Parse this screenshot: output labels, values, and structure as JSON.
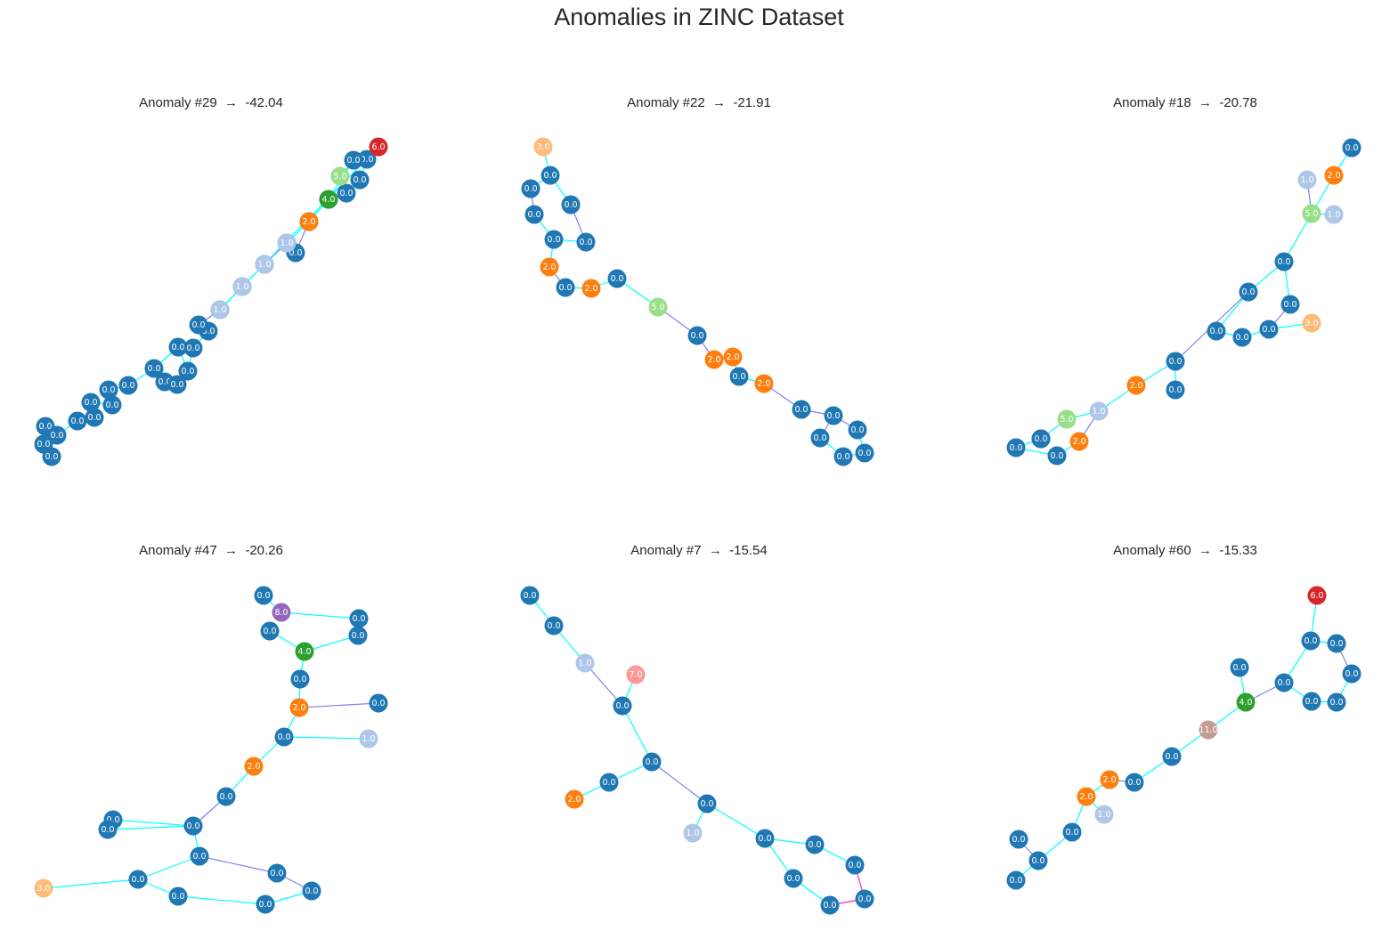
{
  "title": "Anomalies in ZINC Dataset",
  "colors": {
    "bond_single": "#00ffff",
    "bond_double": "#8080ee",
    "bond_other": "#ee22cc",
    "atom": {
      "0": "#1f77b4",
      "1": "#aec7e8",
      "2": "#ff7f0e",
      "3": "#ffbb78",
      "4": "#2ca02c",
      "5": "#98df8a",
      "6": "#d62728",
      "7": "#ff9896",
      "8": "#9467bd",
      "11": "#c49c94"
    }
  },
  "panels": [
    {
      "title": "Anomaly #29  →  -42.04",
      "atoms": [
        "0.0",
        "0.0",
        "0.0",
        "0.0",
        "0.0",
        "0.0",
        "0.0",
        "0.0",
        "0.0",
        "0.0",
        "0.0",
        "0.0",
        "0.0",
        "0.0",
        "0.0",
        "0.0",
        "0.0",
        "0.0",
        "0.0",
        "0.0",
        "0.0",
        "0.0",
        "0.0",
        "0.0",
        "0.0",
        "0.0",
        "0.0",
        "0.0",
        "0.0",
        "5.0",
        "4.0",
        "2.0",
        "1.0",
        "1.0",
        "1.0",
        "1.0",
        "6.0"
      ],
      "edges": [
        [
          0,
          1
        ],
        [
          0,
          2
        ],
        [
          0,
          3
        ],
        [
          3,
          4
        ],
        [
          4,
          5
        ],
        [
          5,
          6
        ],
        [
          6,
          7
        ],
        [
          7,
          8
        ],
        [
          8,
          9
        ],
        [
          9,
          10
        ],
        [
          10,
          11
        ],
        [
          10,
          12
        ],
        [
          11,
          13
        ],
        [
          12,
          14
        ],
        [
          14,
          15
        ],
        [
          15,
          16
        ],
        [
          16,
          17
        ],
        [
          17,
          18
        ],
        [
          18,
          19
        ],
        [
          19,
          20
        ],
        [
          20,
          21
        ],
        [
          21,
          22
        ],
        [
          22,
          23
        ],
        [
          23,
          24
        ],
        [
          24,
          25
        ],
        [
          25,
          26
        ],
        [
          26,
          27
        ],
        [
          27,
          28
        ],
        [
          28,
          29
        ],
        [
          28,
          30
        ],
        [
          30,
          31
        ],
        [
          31,
          32
        ],
        [
          32,
          33
        ],
        [
          33,
          34
        ],
        [
          34,
          35
        ],
        [
          35,
          36
        ]
      ]
    },
    {
      "title": "Anomaly #22  →  -21.91",
      "atoms": [
        "3.0",
        "0.0",
        "0.0",
        "0.0",
        "0.0",
        "0.0",
        "0.0",
        "2.0",
        "0.0",
        "2.0",
        "0.0",
        "5.0",
        "0.0",
        "2.0",
        "2.0",
        "0.0",
        "2.0",
        "0.0",
        "0.0",
        "0.0",
        "0.0",
        "0.0",
        "0.0"
      ],
      "edges": [
        [
          0,
          1
        ],
        [
          1,
          2
        ],
        [
          2,
          3
        ],
        [
          3,
          4
        ],
        [
          4,
          5
        ],
        [
          5,
          6
        ],
        [
          4,
          7
        ],
        [
          7,
          8
        ],
        [
          8,
          9
        ],
        [
          9,
          10
        ],
        [
          10,
          11
        ],
        [
          11,
          12
        ],
        [
          12,
          13
        ],
        [
          13,
          14
        ],
        [
          14,
          15
        ],
        [
          15,
          16
        ],
        [
          16,
          17
        ],
        [
          17,
          18
        ],
        [
          18,
          19
        ],
        [
          19,
          20
        ],
        [
          20,
          21
        ],
        [
          21,
          22
        ],
        [
          18,
          22
        ],
        [
          1,
          6
        ]
      ],
      "double": [
        [
          5,
          6
        ],
        [
          11,
          12
        ],
        [
          16,
          17
        ],
        [
          18,
          19
        ]
      ]
    },
    {
      "title": "Anomaly #18  →  -20.78",
      "atoms": [
        "0.0",
        "2.0",
        "1.0",
        "5.0",
        "1.0",
        "0.0",
        "0.0",
        "0.0",
        "0.0",
        "0.0",
        "0.0",
        "3.0",
        "0.0",
        "0.0",
        "2.0",
        "1.0",
        "5.0",
        "0.0",
        "0.0",
        "0.0",
        "2.0",
        "0.0"
      ],
      "edges": [
        [
          0,
          1
        ],
        [
          1,
          3
        ],
        [
          2,
          3
        ],
        [
          3,
          4
        ],
        [
          3,
          5
        ],
        [
          5,
          6
        ],
        [
          5,
          8
        ],
        [
          6,
          7
        ],
        [
          7,
          11
        ],
        [
          7,
          10
        ],
        [
          10,
          9
        ],
        [
          9,
          8
        ],
        [
          8,
          12
        ],
        [
          12,
          13
        ],
        [
          12,
          14
        ],
        [
          14,
          15
        ],
        [
          15,
          16
        ],
        [
          15,
          20
        ],
        [
          16,
          17
        ],
        [
          17,
          18
        ],
        [
          18,
          19
        ],
        [
          20,
          19
        ]
      ]
    },
    {
      "title": "Anomaly #47  →  -20.26",
      "atoms": [
        "0.0",
        "8.0",
        "0.0",
        "0.0",
        "0.0",
        "4.0",
        "0.0",
        "2.0",
        "0.0",
        "0.0",
        "1.0",
        "2.0",
        "0.0",
        "0.0",
        "0.0",
        "0.0",
        "0.0",
        "3.0",
        "0.0",
        "0.0",
        "0.0",
        "0.0",
        "0.0"
      ],
      "edges": [
        [
          0,
          1
        ],
        [
          1,
          2
        ],
        [
          2,
          3
        ],
        [
          3,
          5
        ],
        [
          4,
          5
        ],
        [
          5,
          6
        ],
        [
          6,
          7
        ],
        [
          7,
          8
        ],
        [
          7,
          9
        ],
        [
          9,
          10
        ],
        [
          9,
          11
        ],
        [
          11,
          12
        ],
        [
          12,
          15
        ],
        [
          13,
          15
        ],
        [
          14,
          15
        ],
        [
          15,
          16
        ],
        [
          16,
          18
        ],
        [
          16,
          19
        ],
        [
          17,
          18
        ],
        [
          18,
          20
        ],
        [
          20,
          21
        ],
        [
          21,
          22
        ],
        [
          22,
          19
        ]
      ]
    },
    {
      "title": "Anomaly #7  →  -15.54",
      "atoms": [
        "0.0",
        "0.0",
        "1.0",
        "7.0",
        "0.0",
        "0.0",
        "0.0",
        "2.0",
        "0.0",
        "1.0",
        "0.0",
        "0.0",
        "0.0",
        "0.0",
        "0.0",
        "0.0"
      ],
      "edges": [
        [
          0,
          1
        ],
        [
          1,
          2
        ],
        [
          2,
          4
        ],
        [
          3,
          4
        ],
        [
          4,
          5
        ],
        [
          5,
          6
        ],
        [
          6,
          7
        ],
        [
          5,
          8
        ],
        [
          8,
          9
        ],
        [
          8,
          10
        ],
        [
          10,
          11
        ],
        [
          11,
          12
        ],
        [
          12,
          15
        ],
        [
          15,
          14
        ],
        [
          14,
          13
        ],
        [
          13,
          10
        ]
      ]
    },
    {
      "title": "Anomaly #60  →  -15.33",
      "atoms": [
        "6.0",
        "0.0",
        "0.0",
        "0.0",
        "0.0",
        "0.0",
        "0.0",
        "0.0",
        "4.0",
        "11.0",
        "0.0",
        "0.0",
        "2.0",
        "2.0",
        "1.0",
        "0.0",
        "0.0",
        "0.0",
        "0.0"
      ],
      "edges": [
        [
          0,
          1
        ],
        [
          1,
          2
        ],
        [
          2,
          3
        ],
        [
          3,
          4
        ],
        [
          4,
          5
        ],
        [
          5,
          6
        ],
        [
          6,
          1
        ],
        [
          6,
          8
        ],
        [
          7,
          8
        ],
        [
          8,
          9
        ],
        [
          9,
          10
        ],
        [
          10,
          11
        ],
        [
          11,
          12
        ],
        [
          12,
          13
        ],
        [
          13,
          14
        ],
        [
          13,
          15
        ],
        [
          15,
          16
        ],
        [
          16,
          17
        ],
        [
          16,
          18
        ]
      ]
    }
  ]
}
